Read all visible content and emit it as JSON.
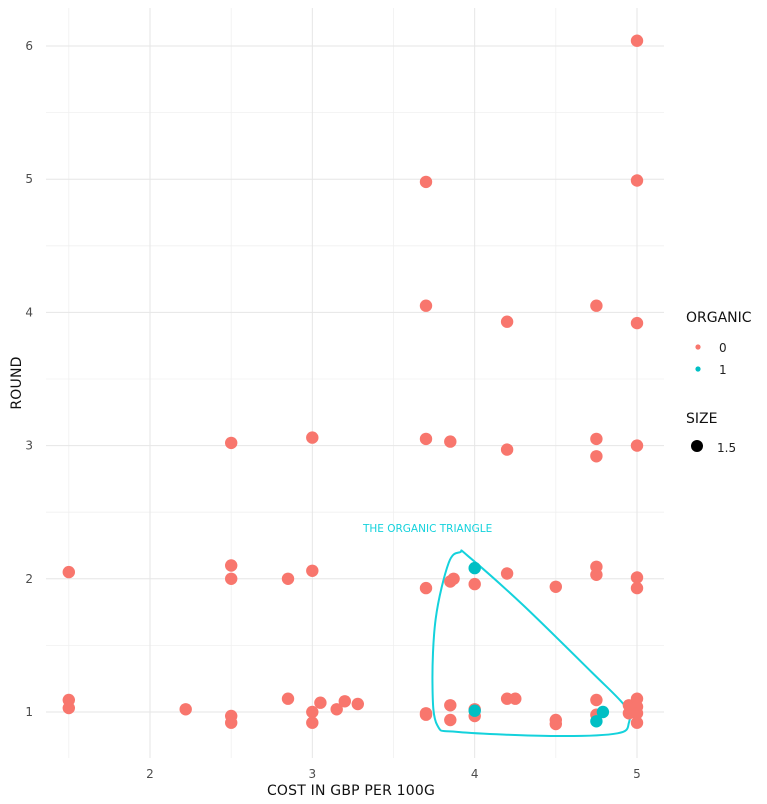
{
  "chart_data": {
    "type": "scatter",
    "title": "",
    "xlabel": "COST IN GBP PER 100G",
    "ylabel": "ROUND",
    "xlim": [
      1.45,
      5.18
    ],
    "ylim": [
      0.8,
      6.25
    ],
    "grid": true,
    "x_ticks": [
      2,
      3,
      4,
      5
    ],
    "y_ticks": [
      1,
      2,
      3,
      4,
      5,
      6
    ],
    "x_tick_labels": [
      "2",
      "3",
      "4",
      "5"
    ],
    "y_tick_labels": [
      "1",
      "2",
      "3",
      "4",
      "5",
      "6"
    ],
    "series": [
      {
        "name": "0",
        "color": "#f8766d",
        "points": [
          [
            5.0,
            6.04
          ],
          [
            3.7,
            4.98
          ],
          [
            5.0,
            4.99
          ],
          [
            3.7,
            4.05
          ],
          [
            4.2,
            3.93
          ],
          [
            4.75,
            4.05
          ],
          [
            5.0,
            3.92
          ],
          [
            2.5,
            3.02
          ],
          [
            3.0,
            3.06
          ],
          [
            3.7,
            3.05
          ],
          [
            3.85,
            3.03
          ],
          [
            4.2,
            2.97
          ],
          [
            4.75,
            3.05
          ],
          [
            4.75,
            2.92
          ],
          [
            5.0,
            3.0
          ],
          [
            1.5,
            2.05
          ],
          [
            2.5,
            2.1
          ],
          [
            2.5,
            2.0
          ],
          [
            2.85,
            2.0
          ],
          [
            3.0,
            2.06
          ],
          [
            3.7,
            1.93
          ],
          [
            3.85,
            1.98
          ],
          [
            3.87,
            2.0
          ],
          [
            4.0,
            1.96
          ],
          [
            4.2,
            2.04
          ],
          [
            4.5,
            1.94
          ],
          [
            4.75,
            2.09
          ],
          [
            4.75,
            2.03
          ],
          [
            5.0,
            2.01
          ],
          [
            5.0,
            1.93
          ],
          [
            1.5,
            1.09
          ],
          [
            1.5,
            1.03
          ],
          [
            2.22,
            1.02
          ],
          [
            2.5,
            0.97
          ],
          [
            2.5,
            0.92
          ],
          [
            2.85,
            1.1
          ],
          [
            3.0,
            1.0
          ],
          [
            3.0,
            0.92
          ],
          [
            3.05,
            1.07
          ],
          [
            3.15,
            1.02
          ],
          [
            3.2,
            1.08
          ],
          [
            3.28,
            1.06
          ],
          [
            3.7,
            0.99
          ],
          [
            3.7,
            0.98
          ],
          [
            3.85,
            1.05
          ],
          [
            3.85,
            0.94
          ],
          [
            4.0,
            0.97
          ],
          [
            4.0,
            1.02
          ],
          [
            4.2,
            1.1
          ],
          [
            4.25,
            1.1
          ],
          [
            4.5,
            0.94
          ],
          [
            4.5,
            0.91
          ],
          [
            4.75,
            1.09
          ],
          [
            4.75,
            0.98
          ],
          [
            4.95,
            1.05
          ],
          [
            4.95,
            0.99
          ],
          [
            5.0,
            1.1
          ],
          [
            5.0,
            1.04
          ],
          [
            5.0,
            0.99
          ],
          [
            5.0,
            0.92
          ]
        ]
      },
      {
        "name": "1",
        "color": "#00bfc4",
        "points": [
          [
            4.0,
            2.08
          ],
          [
            4.0,
            1.01
          ],
          [
            4.75,
            0.93
          ],
          [
            4.79,
            1.0
          ]
        ]
      }
    ],
    "point_size": 1.5,
    "legend": {
      "position": "right",
      "color_title": "ORGANIC",
      "color_entries": [
        {
          "label": "0",
          "color": "#f8766d"
        },
        {
          "label": "1",
          "color": "#00bfc4"
        }
      ],
      "size_title": "SIZE",
      "size_entries": [
        {
          "label": "1.5",
          "color": "#000000"
        }
      ]
    },
    "annotations": [
      {
        "text": "THE ORGANIC TRIANGLE",
        "x": 3.71,
        "y": 2.38,
        "color": "#14d2dc",
        "outline": [
          [
            3.91,
            2.2
          ],
          [
            3.96,
            2.17
          ],
          [
            4.3,
            1.8
          ],
          [
            4.72,
            1.3
          ],
          [
            4.93,
            1.04
          ],
          [
            4.95,
            0.92
          ],
          [
            4.88,
            0.84
          ],
          [
            4.5,
            0.82
          ],
          [
            3.9,
            0.85
          ],
          [
            3.77,
            0.9
          ],
          [
            3.74,
            1.2
          ],
          [
            3.76,
            1.7
          ],
          [
            3.84,
            2.12
          ]
        ]
      }
    ]
  }
}
